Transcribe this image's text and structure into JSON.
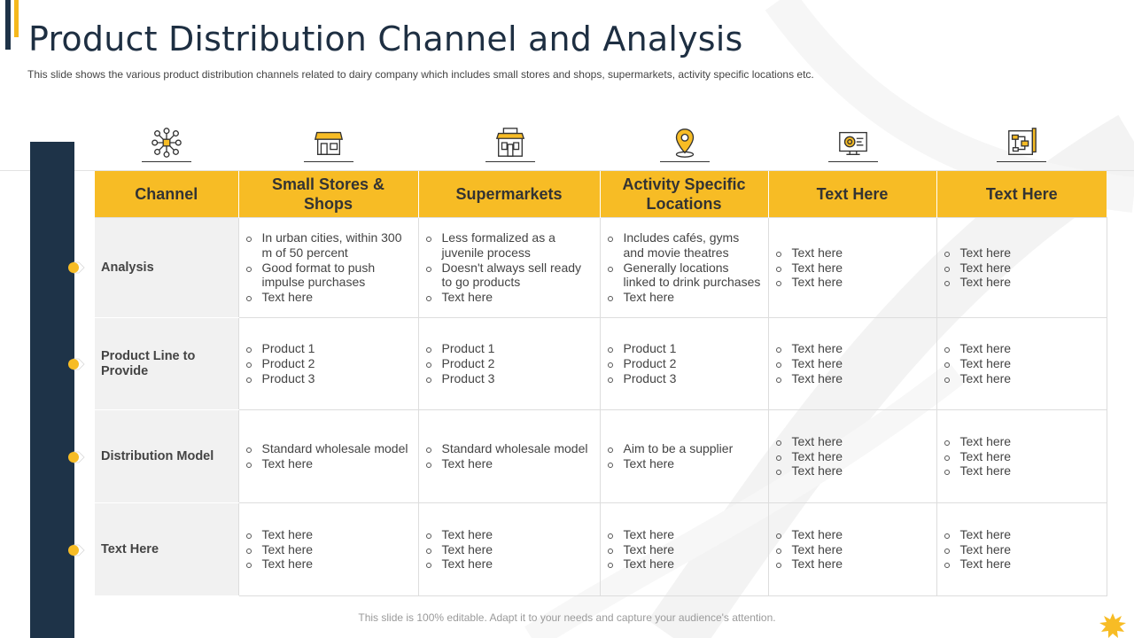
{
  "header": {
    "title": "Product Distribution Channel and Analysis",
    "subtitle": "This slide shows the various  product distribution channels related to dairy company which includes small stores and shops, supermarkets, activity specific locations etc."
  },
  "icons": [
    "network-icon",
    "store-icon",
    "supermarket-icon",
    "location-pin-icon",
    "monitor-target-icon",
    "flowchart-board-icon"
  ],
  "table": {
    "columns": [
      "Channel",
      "Small Stores & Shops",
      "Supermarkets",
      "Activity Specific Locations",
      "Text Here",
      "Text Here"
    ],
    "rows": [
      {
        "label": "Analysis",
        "cells": [
          [
            "In urban cities, within 300 m of 50 percent",
            "Good format to push impulse purchases",
            "Text here"
          ],
          [
            "Less formalized as a juvenile process",
            "Doesn't always sell ready to go products",
            "Text here"
          ],
          [
            "Includes cafés, gyms and movie theatres",
            "Generally locations linked to drink purchases",
            "Text here"
          ],
          [
            "Text here",
            "Text here",
            "Text here"
          ],
          [
            "Text here",
            "Text here",
            "Text here"
          ]
        ]
      },
      {
        "label": "Product Line to Provide",
        "cells": [
          [
            "Product 1",
            "Product 2",
            "Product 3"
          ],
          [
            "Product 1",
            "Product 2",
            "Product 3"
          ],
          [
            "Product 1",
            "Product 2",
            "Product 3"
          ],
          [
            "Text here",
            "Text here",
            "Text here"
          ],
          [
            "Text here",
            "Text here",
            "Text here"
          ]
        ]
      },
      {
        "label": "Distribution Model",
        "cells": [
          [
            "Standard wholesale model",
            "Text here"
          ],
          [
            "Standard wholesale model",
            "Text here"
          ],
          [
            "Aim to be a supplier",
            "Text here"
          ],
          [
            "Text here",
            "Text here",
            "Text here"
          ],
          [
            "Text here",
            "Text here",
            "Text here"
          ]
        ]
      },
      {
        "label": "Text Here",
        "cells": [
          [
            "Text here",
            "Text here",
            "Text here"
          ],
          [
            "Text here",
            "Text here",
            "Text here"
          ],
          [
            "Text here",
            "Text here",
            "Text here"
          ],
          [
            "Text here",
            "Text here",
            "Text here"
          ],
          [
            "Text here",
            "Text here",
            "Text here"
          ]
        ]
      }
    ]
  },
  "footer": "This slide is 100% editable. Adapt it to your needs and capture your audience's attention.",
  "colors": {
    "accent": "#f7bc25",
    "navy": "#1e3348",
    "rowhead_bg": "#f1f1f1"
  }
}
